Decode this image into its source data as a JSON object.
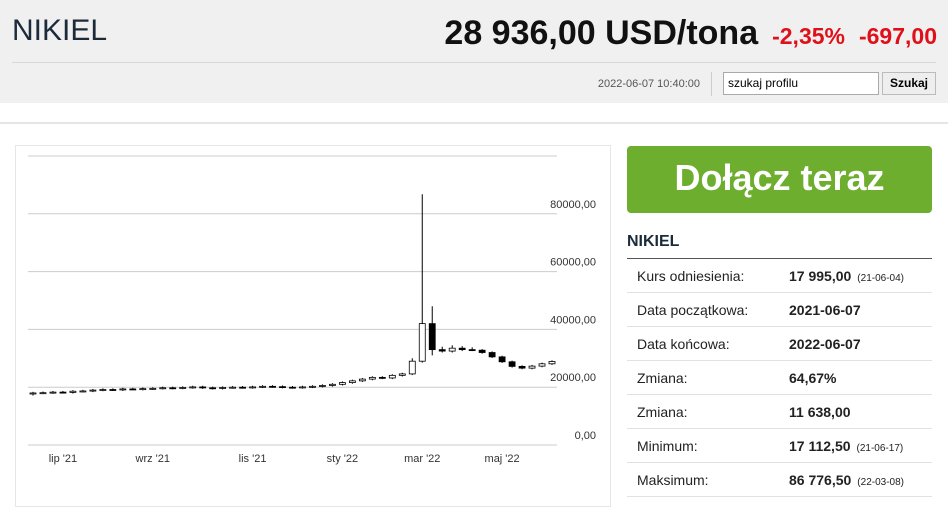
{
  "header": {
    "title": "NIKIEL",
    "price": "28 936,00 USD/tona",
    "change_pct": "-2,35%",
    "change_abs": "-697,00",
    "timestamp": "2022-06-07 10:40:00",
    "search_placeholder": "szukaj profilu",
    "search_button": "Szukaj"
  },
  "chart_data": {
    "type": "candlestick",
    "categories": [
      null,
      null,
      null,
      "lip '21",
      null,
      null,
      null,
      null,
      null,
      null,
      null,
      null,
      "wrz '21",
      null,
      null,
      null,
      null,
      null,
      null,
      null,
      null,
      null,
      "lis '21",
      null,
      null,
      null,
      null,
      null,
      null,
      null,
      null,
      "sty '22",
      null,
      null,
      null,
      null,
      null,
      null,
      null,
      "mar '22",
      null,
      null,
      null,
      null,
      null,
      null,
      null,
      "maj '22",
      null,
      null,
      null,
      null,
      null
    ],
    "open": [
      17995,
      18000,
      18100,
      18300,
      18200,
      18600,
      18700,
      19000,
      19200,
      19100,
      19400,
      19300,
      19500,
      19600,
      19800,
      19700,
      19900,
      20100,
      19800,
      19600,
      19900,
      20000,
      19900,
      20100,
      20300,
      20200,
      20000,
      19900,
      20100,
      20300,
      20600,
      21000,
      21600,
      22200,
      22800,
      23400,
      23200,
      24100,
      24600,
      29000,
      42000,
      33000,
      32500,
      33500,
      33000,
      32800,
      32000,
      30500,
      28800,
      27200,
      26600,
      27300,
      28100
    ],
    "high": [
      18400,
      18500,
      18700,
      18700,
      19000,
      19100,
      19400,
      19600,
      19600,
      19800,
      19800,
      19900,
      20000,
      20200,
      20200,
      20300,
      20500,
      20500,
      20200,
      20300,
      20400,
      20400,
      20500,
      20700,
      20700,
      20600,
      20400,
      20500,
      20700,
      21000,
      21400,
      22000,
      22600,
      23200,
      23800,
      23800,
      24500,
      25000,
      30000,
      86776,
      48000,
      34000,
      34500,
      34200,
      33800,
      33200,
      32400,
      30900,
      29200,
      27600,
      27700,
      28500,
      29300
    ],
    "low": [
      17112,
      17600,
      17700,
      17800,
      17800,
      18200,
      18300,
      18600,
      18700,
      18700,
      19000,
      18900,
      19100,
      19200,
      19300,
      19300,
      19500,
      19400,
      19200,
      19200,
      19500,
      19500,
      19500,
      19700,
      19800,
      19600,
      19500,
      19500,
      19700,
      19900,
      20200,
      20600,
      21200,
      21800,
      22400,
      22800,
      22800,
      23700,
      24200,
      28500,
      31000,
      32000,
      32000,
      32500,
      32500,
      31600,
      30100,
      28400,
      26800,
      26200,
      26200,
      26900,
      27700
    ],
    "close": [
      18000,
      18100,
      18300,
      18200,
      18600,
      18700,
      19000,
      19200,
      19100,
      19400,
      19300,
      19500,
      19600,
      19800,
      19700,
      19900,
      20100,
      19800,
      19600,
      19900,
      20000,
      19900,
      20100,
      20300,
      20200,
      20000,
      19900,
      20100,
      20300,
      20600,
      21000,
      21600,
      22200,
      22800,
      23400,
      23200,
      24100,
      24600,
      29000,
      42000,
      33000,
      32500,
      33500,
      33000,
      32800,
      32000,
      30500,
      28800,
      27200,
      26600,
      27300,
      28100,
      28900
    ],
    "ylim": [
      0,
      100000
    ],
    "yticks": [
      {
        "value": 0,
        "label": "0,00"
      },
      {
        "value": 20000,
        "label": "20000,00"
      },
      {
        "value": 40000,
        "label": "40000,00"
      },
      {
        "value": 60000,
        "label": "60000,00"
      },
      {
        "value": 80000,
        "label": "80000,00"
      }
    ],
    "grid": true,
    "up_color": "#ffffff",
    "down_color": "#000000",
    "wick_color": "#000000"
  },
  "sidebar": {
    "cta": "Dołącz teraz",
    "heading": "NIKIEL",
    "rows": [
      [
        "Kurs odniesienia:",
        "17 995,00",
        "(21-06-04)"
      ],
      [
        "Data początkowa:",
        "2021-06-07"
      ],
      [
        "Data końcowa:",
        "2022-06-07"
      ],
      [
        "Zmiana:",
        "64,67%"
      ],
      [
        "Zmiana:",
        "11 638,00"
      ],
      [
        "Minimum:",
        "17 112,50",
        "(21-06-17)"
      ],
      [
        "Maksimum:",
        "86 776,50",
        "(22-03-08)"
      ]
    ]
  }
}
